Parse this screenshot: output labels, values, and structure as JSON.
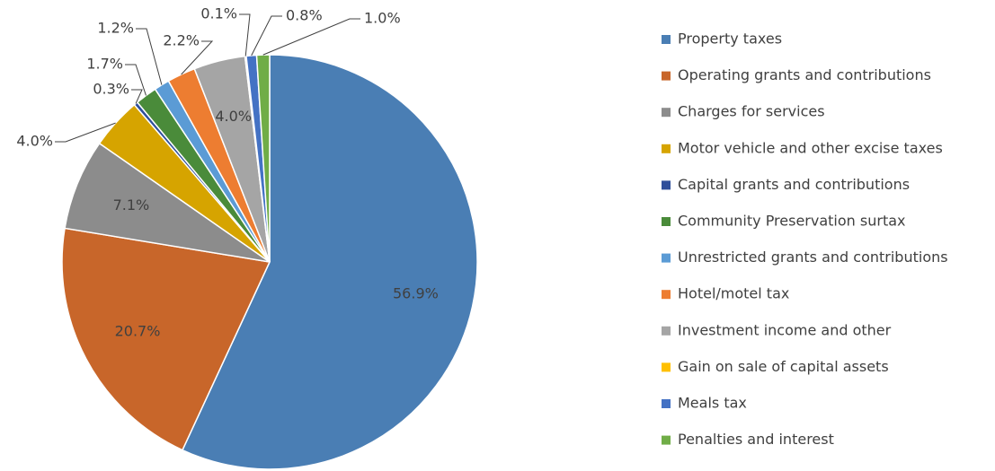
{
  "chart_data": {
    "type": "pie",
    "categories": [
      "Property taxes",
      "Operating grants and contributions",
      "Charges for services",
      "Motor vehicle and other excise taxes",
      "Capital grants and contributions",
      "Community Preservation surtax",
      "Unrestricted grants and contributions",
      "Hotel/motel tax",
      "Investment income and other",
      "Gain on sale of capital assets",
      "Meals tax",
      "Penalties and interest"
    ],
    "values": [
      56.9,
      20.7,
      7.1,
      4.0,
      0.3,
      1.7,
      1.2,
      2.2,
      4.0,
      0.1,
      0.8,
      1.0
    ],
    "value_labels": [
      "56.9%",
      "20.7%",
      "7.1%",
      "4.0%",
      "0.3%",
      "1.7%",
      "1.2%",
      "2.2%",
      "4.0%",
      "0.1%",
      "0.8%",
      "1.0%"
    ],
    "colors": [
      "#4a7eb4",
      "#c8662a",
      "#8c8c8c",
      "#d6a400",
      "#2f4f9a",
      "#4a8b3a",
      "#5b9bd5",
      "#ed7d31",
      "#a5a5a5",
      "#ffc000",
      "#4472c4",
      "#70ad47"
    ],
    "legend": "right"
  }
}
